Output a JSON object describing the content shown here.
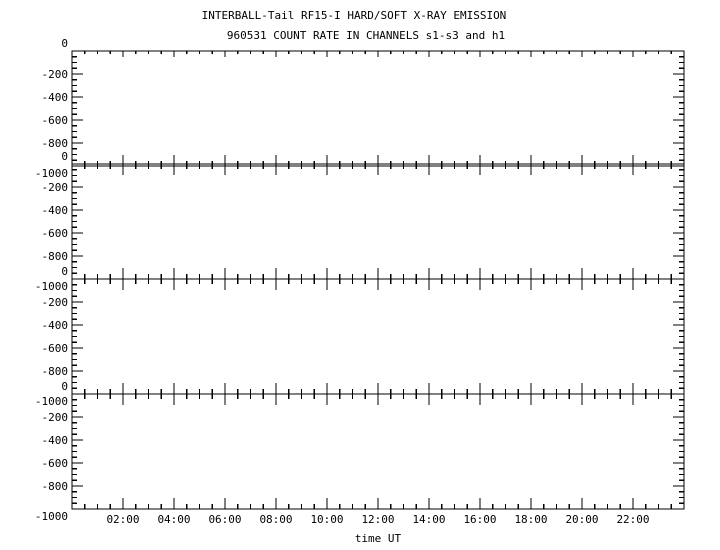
{
  "chart_data": [
    {
      "type": "line",
      "title": "INTERBALL-Tail RF15-I HARD/SOFT X-RAY EMISSION",
      "subtitle": "960531  COUNT RATE IN CHANNELS s1-s3 and h1",
      "xlabel": "time UT",
      "xlim_hours": [
        0,
        24
      ],
      "x_tick_labels": [
        "02:00",
        "04:00",
        "06:00",
        "08:00",
        "10:00",
        "12:00",
        "14:00",
        "16:00",
        "18:00",
        "20:00",
        "22:00"
      ],
      "ylim": [
        0,
        -1000
      ],
      "y_tick_labels": [
        "-1000",
        "-800",
        "-600",
        "-400",
        "-200",
        "0"
      ],
      "grid": false,
      "panels": 4,
      "series": []
    }
  ]
}
